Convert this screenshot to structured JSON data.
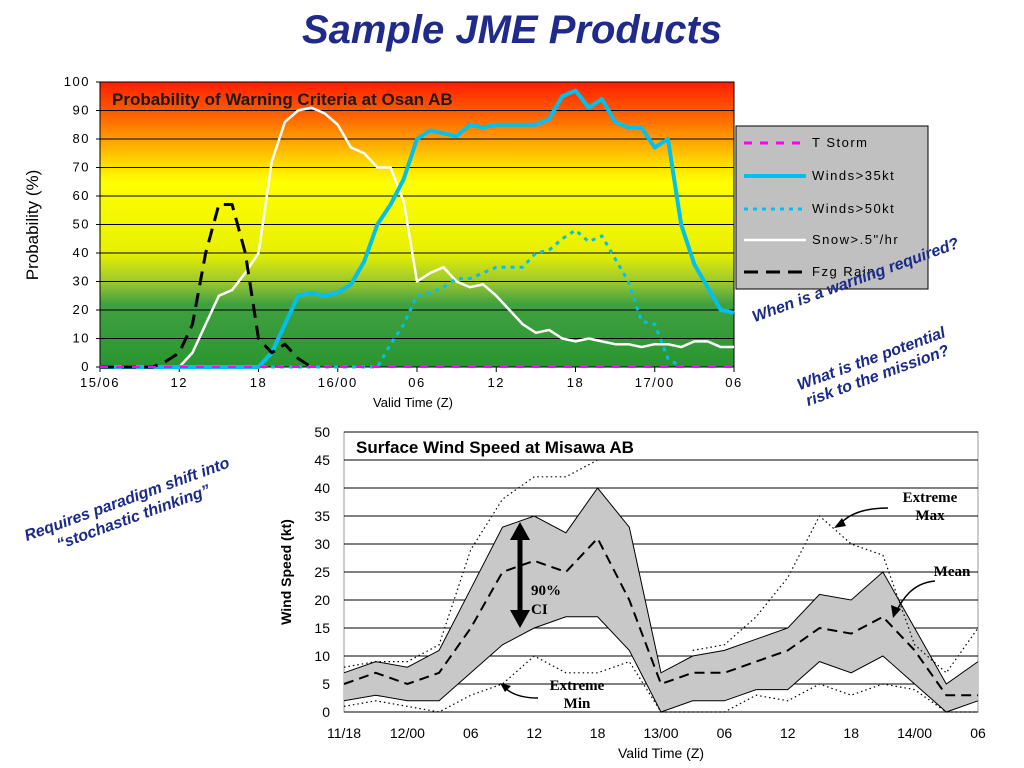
{
  "slide": {
    "title": "Sample JME Products",
    "note_warning": "When is a warning required?",
    "note_risk_line1": "What is the potential",
    "note_risk_line2": "risk  to the mission?",
    "note_paradigm_line1": "Requires paradigm shift into",
    "note_paradigm_line2": "“stochastic thinking”"
  },
  "chart_data": [
    {
      "type": "line",
      "title": "Probability of Warning Criteria at Osan AB",
      "xlabel": "Valid Time (Z)",
      "ylabel": "Probability (%)",
      "ylim": [
        0,
        100
      ],
      "xlim": [
        0,
        48
      ],
      "x_ticks": [
        {
          "x": 0,
          "label": "15/06"
        },
        {
          "x": 6,
          "label": "12"
        },
        {
          "x": 12,
          "label": "18"
        },
        {
          "x": 18,
          "label": "16/00"
        },
        {
          "x": 24,
          "label": "06"
        },
        {
          "x": 30,
          "label": "12"
        },
        {
          "x": 36,
          "label": "18"
        },
        {
          "x": 42,
          "label": "17/00"
        },
        {
          "x": 48,
          "label": "06"
        }
      ],
      "y_ticks": [
        "0",
        "10",
        "20",
        "30",
        "40",
        "50",
        "60",
        "70",
        "80",
        "90",
        "100"
      ],
      "background": "probability gradient: green (low) to yellow to red (high)",
      "grid": true,
      "legend_position": "right",
      "series": [
        {
          "name": "T Storm",
          "color": "#ff00ff",
          "style": "dashed",
          "x": [
            0,
            48
          ],
          "y": [
            0,
            0
          ]
        },
        {
          "name": "Winds>35kt",
          "color": "#00c0f0",
          "style": "solid-thick",
          "x": [
            0,
            12,
            13,
            14,
            15,
            16,
            17,
            18,
            19,
            20,
            21,
            22,
            23,
            24,
            25,
            26,
            27,
            28,
            29,
            30,
            31,
            32,
            33,
            34,
            35,
            36,
            37,
            38,
            39,
            40,
            41,
            42,
            43,
            44,
            45,
            46,
            47,
            48
          ],
          "y": [
            0,
            0,
            5,
            15,
            25,
            26,
            25,
            26,
            29,
            37,
            50,
            57,
            66,
            80,
            83,
            82,
            81,
            85,
            84,
            85,
            85,
            85,
            85,
            87,
            95,
            97,
            91,
            94,
            86,
            84,
            84,
            77,
            80,
            50,
            36,
            28,
            20,
            19
          ]
        },
        {
          "name": "Winds>50kt",
          "color": "#00c0f0",
          "style": "dotted",
          "x": [
            0,
            21,
            22,
            23,
            24,
            25,
            26,
            27,
            28,
            29,
            30,
            31,
            32,
            33,
            34,
            35,
            36,
            37,
            38,
            39,
            40,
            41,
            42,
            43,
            44
          ],
          "y": [
            0,
            0,
            8,
            15,
            25,
            26,
            28,
            31,
            31,
            33,
            35,
            35,
            35,
            40,
            41,
            45,
            48,
            44,
            46,
            38,
            30,
            16,
            15,
            3,
            0
          ]
        },
        {
          "name": "Snow>.5\"/hr",
          "color": "#ffffff",
          "style": "solid",
          "x": [
            0,
            6,
            7,
            8,
            9,
            10,
            11,
            12,
            13,
            14,
            15,
            16,
            17,
            18,
            19,
            20,
            21,
            22,
            23,
            24,
            25,
            26,
            27,
            28,
            29,
            30,
            31,
            32,
            33,
            34,
            35,
            36,
            37,
            38,
            39,
            40,
            41,
            42,
            43,
            44,
            45,
            46,
            47,
            48
          ],
          "y": [
            0,
            0,
            5,
            15,
            25,
            27,
            33,
            40,
            72,
            86,
            90,
            91,
            89,
            85,
            77,
            75,
            70,
            70,
            58,
            30,
            33,
            35,
            30,
            28,
            29,
            25,
            20,
            15,
            12,
            13,
            10,
            9,
            10,
            9,
            8,
            8,
            7,
            8,
            8,
            7,
            9,
            9,
            7,
            7
          ]
        },
        {
          "name": "Fzg Rain",
          "color": "#000000",
          "style": "dashed",
          "x": [
            0,
            4,
            5,
            6,
            7,
            8,
            9,
            10,
            11,
            12,
            13,
            14,
            15,
            16
          ],
          "y": [
            0,
            0,
            2,
            5,
            15,
            40,
            57,
            57,
            40,
            10,
            5,
            8,
            3,
            0
          ]
        }
      ]
    },
    {
      "type": "line",
      "title": "Surface Wind Speed at Misawa AB",
      "xlabel": "Valid Time (Z)",
      "ylabel": "Wind Speed (kt)",
      "ylim": [
        0,
        50
      ],
      "x_ticks": [
        "11/18",
        "12/00",
        "06",
        "12",
        "18",
        "13/00",
        "06",
        "12",
        "18",
        "14/00",
        "06"
      ],
      "y_ticks": [
        "0",
        "5",
        "10",
        "15",
        "20",
        "25",
        "30",
        "35",
        "40",
        "45",
        "50"
      ],
      "grid": true,
      "annotations": [
        "Extreme Max",
        "Mean",
        "90% CI",
        "Extreme Min"
      ],
      "series": [
        {
          "name": "Extreme Max",
          "style": "dotted",
          "x": [
            0,
            1,
            2,
            3,
            4,
            5,
            6,
            7,
            8,
            9,
            10,
            11,
            12,
            13,
            14,
            15,
            16,
            17,
            18,
            19,
            20
          ],
          "y": [
            8,
            9,
            9,
            12,
            29,
            38,
            42,
            42,
            45,
            null,
            null,
            11,
            12,
            17,
            24,
            35,
            30,
            28,
            12,
            7,
            15
          ]
        },
        {
          "name": "90% CI upper",
          "style": "shaded",
          "x": [
            0,
            1,
            2,
            3,
            4,
            5,
            6,
            7,
            8,
            9,
            10,
            11,
            12,
            13,
            14,
            15,
            16,
            17,
            18,
            19,
            20
          ],
          "y": [
            7,
            9,
            8,
            11,
            22,
            33,
            35,
            32,
            40,
            33,
            7,
            10,
            11,
            13,
            15,
            21,
            20,
            25,
            15,
            5,
            9
          ]
        },
        {
          "name": "Mean",
          "style": "dashed",
          "x": [
            0,
            1,
            2,
            3,
            4,
            5,
            6,
            7,
            8,
            9,
            10,
            11,
            12,
            13,
            14,
            15,
            16,
            17,
            18,
            19,
            20
          ],
          "y": [
            5,
            7,
            5,
            7,
            15,
            25,
            27,
            25,
            31,
            20,
            5,
            7,
            7,
            9,
            11,
            15,
            14,
            17,
            11,
            3,
            3
          ]
        },
        {
          "name": "90% CI lower",
          "style": "shaded",
          "x": [
            0,
            1,
            2,
            3,
            4,
            5,
            6,
            7,
            8,
            9,
            10,
            11,
            12,
            13,
            14,
            15,
            16,
            17,
            18,
            19,
            20
          ],
          "y": [
            2,
            3,
            2,
            2,
            7,
            12,
            15,
            17,
            17,
            11,
            0,
            2,
            2,
            4,
            4,
            9,
            7,
            10,
            5,
            0,
            2
          ]
        },
        {
          "name": "Extreme Min",
          "style": "dotted",
          "x": [
            0,
            1,
            2,
            3,
            4,
            5,
            6,
            7,
            8,
            9,
            10,
            11,
            12,
            13,
            14,
            15,
            16,
            17,
            18,
            19,
            20
          ],
          "y": [
            1,
            2,
            1,
            0,
            3,
            5,
            10,
            7,
            7,
            9,
            0,
            0,
            0,
            3,
            2,
            5,
            3,
            5,
            4,
            0,
            0
          ]
        }
      ]
    }
  ]
}
